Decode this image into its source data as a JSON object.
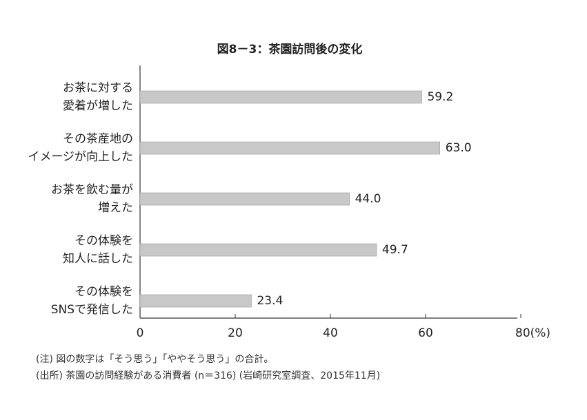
{
  "chart_data": {
    "type": "hbar",
    "title": "図8－3：茶園訪問後の変化",
    "categories": [
      [
        "お茶に対する",
        "愛着が増した"
      ],
      [
        "その茶産地の",
        "イメージが向上した"
      ],
      [
        "お茶を飲む量が",
        "増えた"
      ],
      [
        "その体験を",
        "知人に話した"
      ],
      [
        "その体験を",
        "SNSで発信した"
      ]
    ],
    "values": [
      59.2,
      63.0,
      44.0,
      49.7,
      23.4
    ],
    "value_labels": [
      "59.2",
      "63.0",
      "44.0",
      "49.7",
      "23.4"
    ],
    "color": "#c8c8c8",
    "xlim": [
      0,
      80
    ],
    "xticks": [
      0,
      20,
      40,
      60,
      {
        "value": 80,
        "label": "80(%)"
      }
    ],
    "notes": [
      "(注) 図の数字は「そう思う」「ややそう思う」の合計。",
      "(出所) 茶園の訪問経験がある消費者 (n＝316) (岩崎研究室調査、2015年11月)"
    ]
  }
}
